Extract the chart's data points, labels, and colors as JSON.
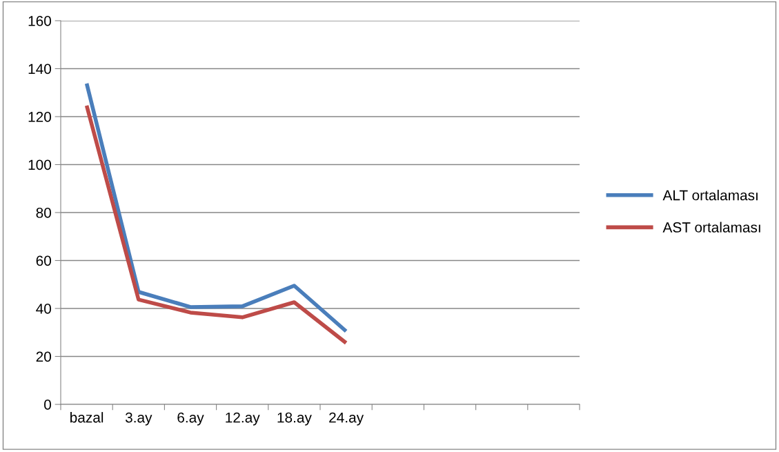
{
  "chart_data": {
    "type": "line",
    "categories": [
      "bazal",
      "3.ay",
      "6.ay",
      "12.ay",
      "18.ay",
      "24.ay",
      null,
      null,
      null,
      null
    ],
    "series": [
      {
        "name": "ALT ortalaması",
        "color": "#4a7ebb",
        "values": [
          133.8,
          46.9,
          40.6,
          40.9,
          49.5,
          30.5,
          null,
          null,
          null,
          null
        ]
      },
      {
        "name": "AST ortalaması",
        "color": "#be4b48",
        "values": [
          124.6,
          43.7,
          38.3,
          36.3,
          42.6,
          25.6,
          null,
          null,
          null,
          null
        ]
      }
    ],
    "ylim": [
      0,
      160
    ],
    "yticks": [
      0,
      20,
      40,
      60,
      80,
      100,
      120,
      140,
      160
    ],
    "grid": "y",
    "legend": "right",
    "marker": "none",
    "line_style": "solid"
  }
}
